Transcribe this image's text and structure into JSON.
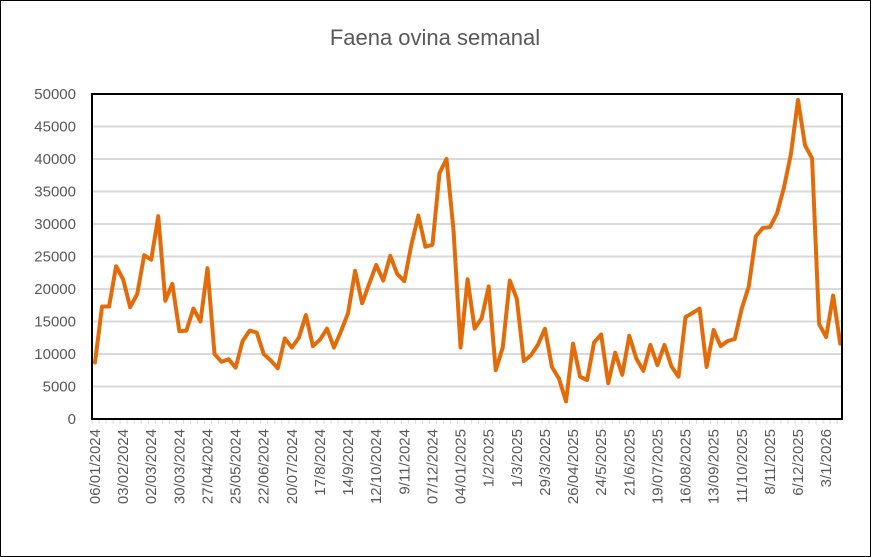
{
  "chart_data": {
    "type": "line",
    "title": "Faena ovina semanal",
    "xlabel": "",
    "ylabel": "",
    "ylim": [
      0,
      50000
    ],
    "yticks": [
      0,
      5000,
      10000,
      15000,
      20000,
      25000,
      30000,
      35000,
      40000,
      45000,
      50000
    ],
    "grid": true,
    "legend": "none",
    "color": "#E36C0A",
    "x_tick_every": 4,
    "x_tick_labels": [
      "06/01/2024",
      "03/02/2024",
      "02/03/2024",
      "30/03/2024",
      "27/04/2024",
      "25/05/2024",
      "22/06/2024",
      "20/07/2024",
      "17/8/2024",
      "14/9/2024",
      "12/10/2024",
      "9/11/2024",
      "07/12/2024",
      "04/01/2025",
      "1/2/2025",
      "1/3/2025",
      "29/3/2025",
      "26/04/2025",
      "24/5/2025",
      "21/6/2025",
      "19/07/2025",
      "16/08/2025",
      "13/09/2025",
      "11/10/2025",
      "8/11/2025",
      "6/12/2025",
      "3/1/2026"
    ],
    "series": [
      {
        "name": "Faena ovina semanal",
        "values": [
          8700,
          17300,
          17300,
          23500,
          21500,
          17200,
          19200,
          25200,
          24500,
          31200,
          18200,
          20800,
          13500,
          13600,
          17000,
          15000,
          23200,
          10000,
          8800,
          9200,
          7900,
          12000,
          13600,
          13300,
          10000,
          9000,
          7800,
          12400,
          11000,
          12500,
          16000,
          11200,
          12200,
          13900,
          11000,
          13500,
          16300,
          22800,
          17800,
          20800,
          23700,
          21300,
          25100,
          22300,
          21200,
          26800,
          31300,
          26500,
          26800,
          37800,
          40000,
          29000,
          11000,
          21500,
          13900,
          15500,
          20400,
          7500,
          11000,
          21300,
          18500,
          8900,
          9800,
          11400,
          13900,
          8000,
          6200,
          2700,
          11600,
          6500,
          6000,
          11800,
          13000,
          5500,
          10200,
          6800,
          12800,
          9300,
          7400,
          11400,
          8300,
          11400,
          8100,
          6500,
          15700,
          16300,
          17000,
          8000,
          13700,
          11200,
          12000,
          12300,
          17000,
          20400,
          28100,
          29400,
          29500,
          31600,
          35600,
          40800,
          49100,
          42100,
          40100,
          14600,
          12600,
          19000,
          11600
        ]
      }
    ]
  }
}
